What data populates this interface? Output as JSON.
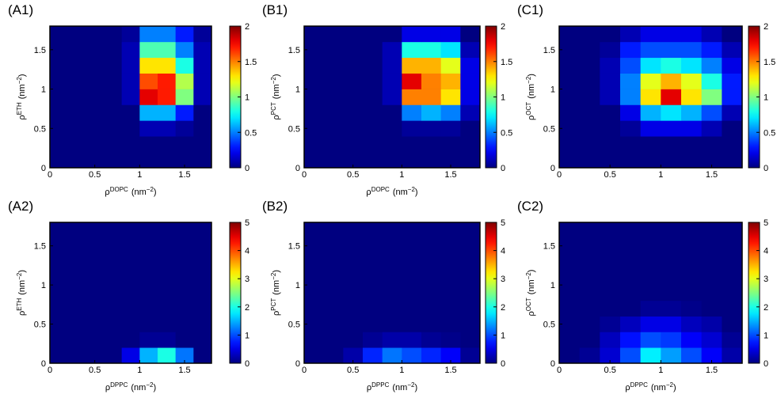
{
  "chart_data": [
    {
      "type": "heatmap",
      "panel_label": "(A1)",
      "colormap": "jet",
      "x": [
        0.1,
        0.3,
        0.5,
        0.7,
        0.9,
        1.1,
        1.3,
        1.5,
        1.7
      ],
      "y": [
        0.1,
        0.3,
        0.5,
        0.7,
        0.9,
        1.1,
        1.3,
        1.5,
        1.7
      ],
      "z": [
        [
          0,
          0,
          0,
          0,
          0,
          0,
          0,
          0,
          0
        ],
        [
          0,
          0,
          0,
          0,
          0,
          0,
          0,
          0,
          0
        ],
        [
          0,
          0,
          0,
          0,
          0,
          0.1,
          0.1,
          0.05,
          0
        ],
        [
          0,
          0,
          0,
          0,
          0,
          0.6,
          0.6,
          0.3,
          0
        ],
        [
          0,
          0,
          0,
          0,
          0.1,
          1.8,
          1.7,
          1.0,
          0.1
        ],
        [
          0,
          0,
          0,
          0,
          0.1,
          1.6,
          1.7,
          1.1,
          0.1
        ],
        [
          0,
          0,
          0,
          0,
          0.1,
          1.3,
          1.3,
          0.8,
          0.1
        ],
        [
          0,
          0,
          0,
          0,
          0.1,
          0.9,
          0.9,
          0.5,
          0.1
        ],
        [
          0,
          0,
          0,
          0,
          0.05,
          0.5,
          0.5,
          0.3,
          0.05
        ]
      ],
      "xlim": [
        0,
        1.8
      ],
      "ylim": [
        0,
        1.8
      ],
      "xticks": [
        0,
        0.5,
        1,
        1.5
      ],
      "yticks": [
        0,
        0.5,
        1,
        1.5
      ],
      "clim": [
        0,
        2
      ],
      "cticks": [
        0,
        0.5,
        1,
        1.5,
        2
      ],
      "xlabel": {
        "base": "ρ",
        "sup": "DOPC",
        "unit": "(nm",
        "unit_sup": "−2",
        "close": ")"
      },
      "ylabel": {
        "base": "ρ",
        "sup": "ETH",
        "unit": "(nm",
        "unit_sup": "−2",
        "close": ")"
      }
    },
    {
      "type": "heatmap",
      "panel_label": "(B1)",
      "colormap": "jet",
      "x": [
        0.1,
        0.3,
        0.5,
        0.7,
        0.9,
        1.1,
        1.3,
        1.5,
        1.7
      ],
      "y": [
        0.1,
        0.3,
        0.5,
        0.7,
        0.9,
        1.1,
        1.3,
        1.5,
        1.7
      ],
      "z": [
        [
          0,
          0,
          0,
          0,
          0,
          0,
          0,
          0,
          0
        ],
        [
          0,
          0,
          0,
          0,
          0,
          0,
          0,
          0,
          0
        ],
        [
          0,
          0,
          0,
          0,
          0,
          0.05,
          0.05,
          0.05,
          0
        ],
        [
          0,
          0,
          0,
          0,
          0,
          0.5,
          0.6,
          0.5,
          0.1
        ],
        [
          0,
          0,
          0,
          0,
          0.1,
          1.5,
          1.5,
          1.3,
          0.2
        ],
        [
          0,
          0,
          0,
          0,
          0.1,
          1.8,
          1.5,
          1.4,
          0.2
        ],
        [
          0,
          0,
          0,
          0,
          0.1,
          1.4,
          1.4,
          1.2,
          0.2
        ],
        [
          0,
          0,
          0,
          0,
          0.1,
          0.8,
          0.8,
          0.7,
          0.1
        ],
        [
          0,
          0,
          0,
          0,
          0,
          0.2,
          0.2,
          0.2,
          0
        ]
      ],
      "xlim": [
        0,
        1.8
      ],
      "ylim": [
        0,
        1.8
      ],
      "xticks": [
        0,
        0.5,
        1,
        1.5
      ],
      "yticks": [
        0,
        0.5,
        1,
        1.5
      ],
      "clim": [
        0,
        2
      ],
      "cticks": [
        0,
        0.5,
        1,
        1.5,
        2
      ],
      "xlabel": {
        "base": "ρ",
        "sup": "DOPC",
        "unit": "(nm",
        "unit_sup": "−2",
        "close": ")"
      },
      "ylabel": {
        "base": "ρ",
        "sup": "PCT",
        "unit": "(nm",
        "unit_sup": "−2",
        "close": ")"
      }
    },
    {
      "type": "heatmap",
      "panel_label": "(C1)",
      "colormap": "jet",
      "x": [
        0.1,
        0.3,
        0.5,
        0.7,
        0.9,
        1.1,
        1.3,
        1.5,
        1.7
      ],
      "y": [
        0.1,
        0.3,
        0.5,
        0.7,
        0.9,
        1.1,
        1.3,
        1.5,
        1.7
      ],
      "z": [
        [
          0,
          0,
          0,
          0,
          0,
          0,
          0,
          0,
          0
        ],
        [
          0,
          0,
          0,
          0,
          0,
          0,
          0,
          0,
          0
        ],
        [
          0,
          0,
          0,
          0.05,
          0.2,
          0.2,
          0.2,
          0.1,
          0
        ],
        [
          0,
          0,
          0,
          0.2,
          0.6,
          0.7,
          0.6,
          0.4,
          0.1
        ],
        [
          0,
          0,
          0.1,
          0.5,
          1.3,
          1.8,
          1.3,
          1.0,
          0.3
        ],
        [
          0,
          0,
          0.1,
          0.5,
          1.2,
          1.4,
          1.2,
          0.8,
          0.3
        ],
        [
          0,
          0,
          0.1,
          0.4,
          0.7,
          0.8,
          0.7,
          0.5,
          0.2
        ],
        [
          0,
          0,
          0.05,
          0.3,
          0.4,
          0.4,
          0.4,
          0.3,
          0.1
        ],
        [
          0,
          0,
          0,
          0.1,
          0.2,
          0.2,
          0.2,
          0.1,
          0
        ]
      ],
      "xlim": [
        0,
        1.8
      ],
      "ylim": [
        0,
        1.8
      ],
      "xticks": [
        0,
        0.5,
        1,
        1.5
      ],
      "yticks": [
        0,
        0.5,
        1,
        1.5
      ],
      "clim": [
        0,
        2
      ],
      "cticks": [
        0,
        0.5,
        1,
        1.5,
        2
      ],
      "ylabel": {
        "base": "ρ",
        "sup": "OCT",
        "unit": "(nm",
        "unit_sup": "−2",
        "close": ")"
      }
    },
    {
      "type": "heatmap",
      "panel_label": "(A2)",
      "colormap": "jet",
      "x": [
        0.1,
        0.3,
        0.5,
        0.7,
        0.9,
        1.1,
        1.3,
        1.5,
        1.7
      ],
      "y": [
        0.1,
        0.3,
        0.5,
        0.7,
        0.9,
        1.1,
        1.3,
        1.5,
        1.7
      ],
      "z": [
        [
          0,
          0,
          0,
          0,
          0.5,
          1.5,
          2.0,
          1.2,
          0
        ],
        [
          0,
          0,
          0,
          0,
          0,
          0.1,
          0.1,
          0,
          0
        ],
        [
          0,
          0,
          0,
          0,
          0,
          0,
          0,
          0,
          0
        ],
        [
          0,
          0,
          0,
          0,
          0,
          0,
          0,
          0,
          0
        ],
        [
          0,
          0,
          0,
          0,
          0,
          0,
          0,
          0,
          0
        ],
        [
          0,
          0,
          0,
          0,
          0,
          0,
          0,
          0,
          0
        ],
        [
          0,
          0,
          0,
          0,
          0,
          0,
          0,
          0,
          0
        ],
        [
          0,
          0,
          0,
          0,
          0,
          0,
          0,
          0,
          0
        ],
        [
          0,
          0,
          0,
          0,
          0,
          0,
          0,
          0,
          0
        ]
      ],
      "xlim": [
        0,
        1.8
      ],
      "ylim": [
        0,
        1.8
      ],
      "xticks": [
        0,
        0.5,
        1,
        1.5
      ],
      "yticks": [
        0,
        0.5,
        1,
        1.5
      ],
      "clim": [
        0,
        5
      ],
      "cticks": [
        0,
        1,
        2,
        3,
        4,
        5
      ],
      "xlabel": {
        "base": "ρ",
        "sup": "DPPC",
        "unit": "(nm",
        "unit_sup": "−2",
        "close": ")"
      },
      "ylabel": {
        "base": "ρ",
        "sup": "ETH",
        "unit": "(nm",
        "unit_sup": "−2",
        "close": ")"
      }
    },
    {
      "type": "heatmap",
      "panel_label": "(B2)",
      "colormap": "jet",
      "x": [
        0.1,
        0.3,
        0.5,
        0.7,
        0.9,
        1.1,
        1.3,
        1.5,
        1.7
      ],
      "y": [
        0.1,
        0.3,
        0.5,
        0.7,
        0.9,
        1.1,
        1.3,
        1.5,
        1.7
      ],
      "z": [
        [
          0,
          0,
          0.2,
          0.8,
          1.2,
          1.0,
          0.8,
          0.6,
          0.1
        ],
        [
          0,
          0,
          0,
          0.1,
          0.2,
          0.2,
          0.1,
          0.05,
          0
        ],
        [
          0,
          0,
          0,
          0,
          0,
          0,
          0,
          0,
          0
        ],
        [
          0,
          0,
          0,
          0,
          0,
          0,
          0,
          0,
          0
        ],
        [
          0,
          0,
          0,
          0,
          0,
          0,
          0,
          0,
          0
        ],
        [
          0,
          0,
          0,
          0,
          0,
          0,
          0,
          0,
          0
        ],
        [
          0,
          0,
          0,
          0,
          0,
          0,
          0,
          0,
          0
        ],
        [
          0,
          0,
          0,
          0,
          0,
          0,
          0,
          0,
          0
        ],
        [
          0,
          0,
          0,
          0,
          0,
          0,
          0,
          0,
          0
        ]
      ],
      "xlim": [
        0,
        1.8
      ],
      "ylim": [
        0,
        1.8
      ],
      "xticks": [
        0,
        0.5,
        1,
        1.5
      ],
      "yticks": [
        0,
        0.5,
        1,
        1.5
      ],
      "clim": [
        0,
        5
      ],
      "cticks": [
        0,
        1,
        2,
        3,
        4,
        5
      ],
      "xlabel": {
        "base": "ρ",
        "sup": "DPPC",
        "unit": "(nm",
        "unit_sup": "−2",
        "close": ")"
      },
      "ylabel": {
        "base": "ρ",
        "sup": "PCT",
        "unit": "(nm",
        "unit_sup": "−2",
        "close": ")"
      }
    },
    {
      "type": "heatmap",
      "panel_label": "(C2)",
      "colormap": "jet",
      "x": [
        0.1,
        0.3,
        0.5,
        0.7,
        0.9,
        1.1,
        1.3,
        1.5,
        1.7
      ],
      "y": [
        0.1,
        0.3,
        0.5,
        0.7,
        0.9,
        1.1,
        1.3,
        1.5,
        1.7
      ],
      "z": [
        [
          0,
          0.1,
          0.4,
          1.0,
          1.8,
          1.4,
          1.0,
          0.6,
          0.2
        ],
        [
          0,
          0,
          0.3,
          0.7,
          1.0,
          0.9,
          0.6,
          0.4,
          0.1
        ],
        [
          0,
          0,
          0.1,
          0.3,
          0.5,
          0.5,
          0.3,
          0.2,
          0
        ],
        [
          0,
          0,
          0,
          0,
          0.1,
          0.1,
          0.05,
          0,
          0
        ],
        [
          0,
          0,
          0,
          0,
          0,
          0,
          0,
          0,
          0
        ],
        [
          0,
          0,
          0,
          0,
          0,
          0,
          0,
          0,
          0
        ],
        [
          0,
          0,
          0,
          0,
          0,
          0,
          0,
          0,
          0
        ],
        [
          0,
          0,
          0,
          0,
          0,
          0,
          0,
          0,
          0
        ],
        [
          0,
          0,
          0,
          0,
          0,
          0,
          0,
          0,
          0
        ]
      ],
      "xlim": [
        0,
        1.8
      ],
      "ylim": [
        0,
        1.8
      ],
      "xticks": [
        0,
        0.5,
        1,
        1.5
      ],
      "yticks": [
        0,
        0.5,
        1,
        1.5
      ],
      "clim": [
        0,
        5
      ],
      "cticks": [
        0,
        1,
        2,
        3,
        4,
        5
      ],
      "xlabel": {
        "base": "ρ",
        "sup": "DPPC",
        "unit": "(nm",
        "unit_sup": "−2",
        "close": ")"
      },
      "ylabel": {
        "base": "ρ",
        "sup": "OCT",
        "unit": "(nm",
        "unit_sup": "−2",
        "close": ")"
      }
    }
  ]
}
